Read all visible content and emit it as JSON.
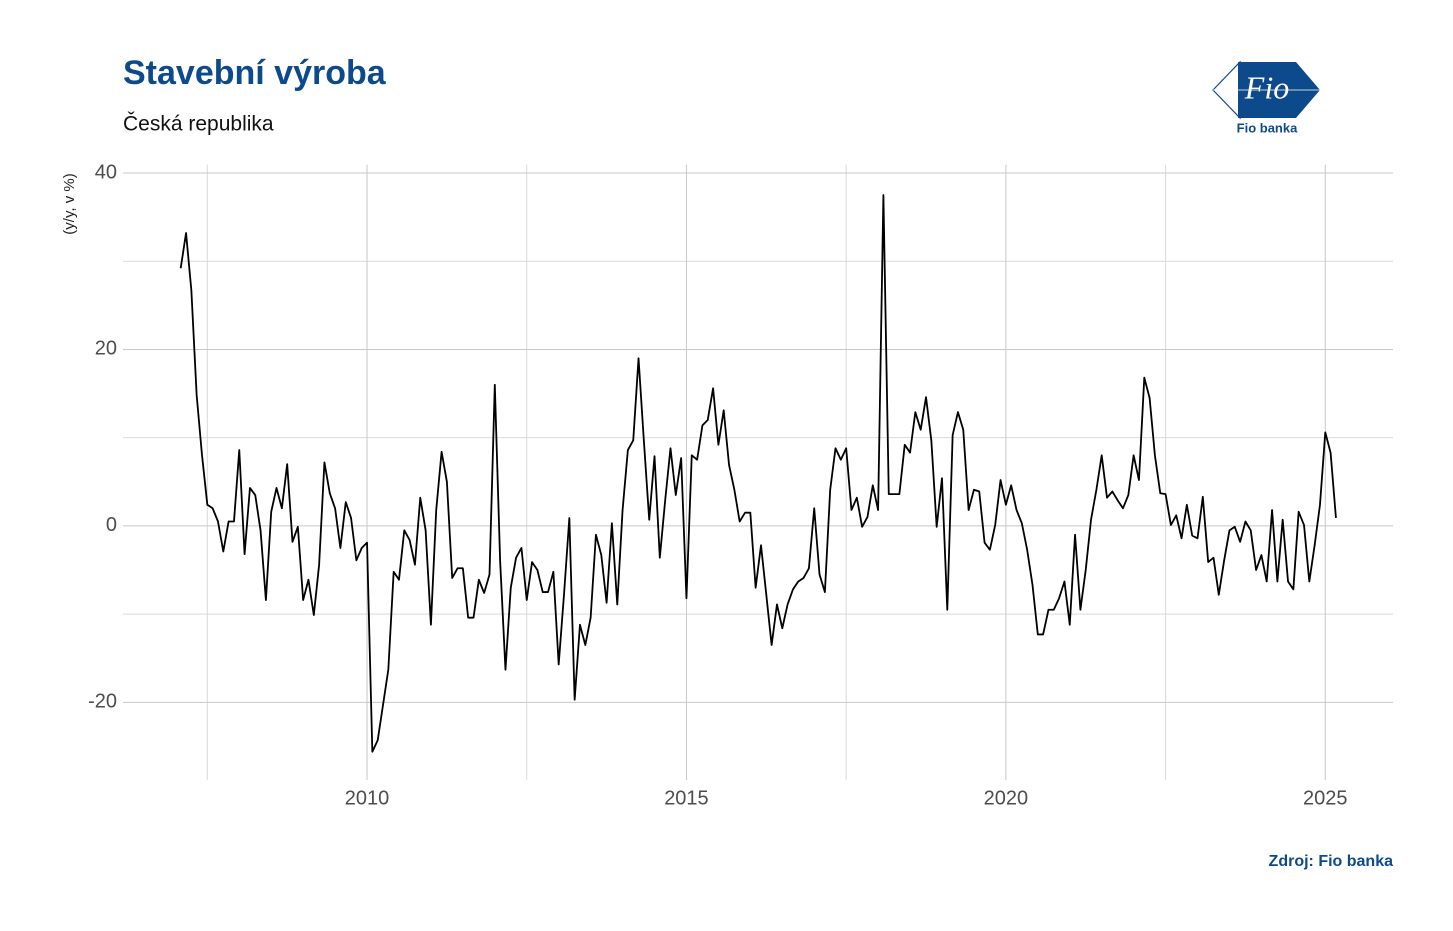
{
  "chart_data": {
    "type": "line",
    "title": "Stavební výroba",
    "subtitle": "Česká republika",
    "ylabel": "(y/y, v %)",
    "source": "Zdroj: Fio banka",
    "x": [
      2007.083,
      2007.167,
      2007.25,
      2007.333,
      2007.417,
      2007.5,
      2007.583,
      2007.667,
      2007.75,
      2007.833,
      2007.917,
      2008,
      2008.083,
      2008.167,
      2008.25,
      2008.333,
      2008.417,
      2008.5,
      2008.583,
      2008.667,
      2008.75,
      2008.833,
      2008.917,
      2009,
      2009.083,
      2009.167,
      2009.25,
      2009.333,
      2009.417,
      2009.5,
      2009.583,
      2009.667,
      2009.75,
      2009.833,
      2009.917,
      2010,
      2010.083,
      2010.167,
      2010.25,
      2010.333,
      2010.417,
      2010.5,
      2010.583,
      2010.667,
      2010.75,
      2010.833,
      2010.917,
      2011,
      2011.083,
      2011.167,
      2011.25,
      2011.333,
      2011.417,
      2011.5,
      2011.583,
      2011.667,
      2011.75,
      2011.833,
      2011.917,
      2012,
      2012.083,
      2012.167,
      2012.25,
      2012.333,
      2012.417,
      2012.5,
      2012.583,
      2012.667,
      2012.75,
      2012.833,
      2012.917,
      2013,
      2013.083,
      2013.167,
      2013.25,
      2013.333,
      2013.417,
      2013.5,
      2013.583,
      2013.667,
      2013.75,
      2013.833,
      2013.917,
      2014,
      2014.083,
      2014.167,
      2014.25,
      2014.333,
      2014.417,
      2014.5,
      2014.583,
      2014.667,
      2014.75,
      2014.833,
      2014.917,
      2015,
      2015.083,
      2015.167,
      2015.25,
      2015.333,
      2015.417,
      2015.5,
      2015.583,
      2015.667,
      2015.75,
      2015.833,
      2015.917,
      2016,
      2016.083,
      2016.167,
      2016.25,
      2016.333,
      2016.417,
      2016.5,
      2016.583,
      2016.667,
      2016.75,
      2016.833,
      2016.917,
      2017,
      2017.083,
      2017.167,
      2017.25,
      2017.333,
      2017.417,
      2017.5,
      2017.583,
      2017.667,
      2017.75,
      2017.833,
      2017.917,
      2018,
      2018.083,
      2018.167,
      2018.25,
      2018.333,
      2018.417,
      2018.5,
      2018.583,
      2018.667,
      2018.75,
      2018.833,
      2018.917,
      2019,
      2019.083,
      2019.167,
      2019.25,
      2019.333,
      2019.417,
      2019.5,
      2019.583,
      2019.667,
      2019.75,
      2019.833,
      2019.917,
      2020,
      2020.083,
      2020.167,
      2020.25,
      2020.333,
      2020.417,
      2020.5,
      2020.583,
      2020.667,
      2020.75,
      2020.833,
      2020.917,
      2021,
      2021.083,
      2021.167,
      2021.25,
      2021.333,
      2021.417,
      2021.5,
      2021.583,
      2021.667,
      2021.75,
      2021.833,
      2021.917,
      2022,
      2022.083,
      2022.167,
      2022.25,
      2022.333,
      2022.417,
      2022.5,
      2022.583,
      2022.667,
      2022.75,
      2022.833,
      2022.917,
      2023,
      2023.083,
      2023.167,
      2023.25,
      2023.333,
      2023.417,
      2023.5,
      2023.583,
      2023.667,
      2023.75,
      2023.833,
      2023.917,
      2024,
      2024.083,
      2024.167,
      2024.25,
      2024.333,
      2024.417,
      2024.5,
      2024.583,
      2024.667,
      2024.75,
      2024.833,
      2024.917,
      2025,
      2025.083,
      2025.167
    ],
    "values": [
      29.2,
      33.2,
      26.7,
      14.8,
      8.0,
      2.4,
      2.0,
      0.5,
      -2.9,
      0.5,
      0.5,
      8.6,
      -3.2,
      4.3,
      3.5,
      -0.5,
      -8.4,
      1.6,
      4.3,
      2.0,
      7.0,
      -1.8,
      -0.1,
      -8.4,
      -6.1,
      -10.1,
      -4.4,
      7.2,
      3.7,
      2.0,
      -2.5,
      2.7,
      0.9,
      -3.9,
      -2.5,
      -1.9,
      -25.6,
      -24.3,
      -20.3,
      -16.3,
      -5.2,
      -6.1,
      -0.5,
      -1.6,
      -4.4,
      3.2,
      -0.5,
      -11.2,
      1.8,
      8.4,
      5.0,
      -5.9,
      -4.8,
      -4.8,
      -10.4,
      -10.4,
      -6.1,
      -7.6,
      -5.5,
      16.0,
      -3.9,
      -16.3,
      -7.0,
      -3.6,
      -2.5,
      -8.4,
      -4.1,
      -5.0,
      -7.5,
      -7.5,
      -5.2,
      -15.7,
      -7.8,
      0.9,
      -19.7,
      -11.2,
      -13.5,
      -10.4,
      -1.0,
      -3.3,
      -8.7,
      0.3,
      -8.9,
      1.8,
      8.6,
      9.7,
      19.0,
      9.7,
      0.7,
      7.9,
      -3.6,
      2.9,
      8.8,
      3.5,
      7.7,
      -8.2,
      8.0,
      7.5,
      11.4,
      12.0,
      15.6,
      9.2,
      13.1,
      6.9,
      4.1,
      0.5,
      1.5,
      1.5,
      -7.0,
      -2.2,
      -7.8,
      -13.5,
      -8.9,
      -11.6,
      -8.9,
      -7.2,
      -6.3,
      -5.9,
      -4.8,
      2.0,
      -5.5,
      -7.5,
      4.1,
      8.8,
      7.5,
      8.8,
      1.8,
      3.2,
      -0.1,
      1.0,
      4.6,
      1.8,
      37.5,
      3.6,
      3.6,
      3.6,
      9.2,
      8.3,
      12.9,
      10.9,
      14.6,
      9.7,
      -0.1,
      5.4,
      -9.5,
      10.3,
      12.9,
      10.9,
      1.8,
      4.1,
      3.9,
      -1.9,
      -2.7,
      0.1,
      5.2,
      2.4,
      4.6,
      1.8,
      0.3,
      -2.7,
      -6.7,
      -12.3,
      -12.3,
      -9.5,
      -9.5,
      -8.2,
      -6.3,
      -11.2,
      -1.0,
      -9.5,
      -5.0,
      0.7,
      4.1,
      8.0,
      3.2,
      3.9,
      2.9,
      2.0,
      3.5,
      8.0,
      5.2,
      16.8,
      14.5,
      8.0,
      3.7,
      3.6,
      0.1,
      1.2,
      -1.4,
      2.4,
      -1.1,
      -1.4,
      3.3,
      -4.1,
      -3.6,
      -7.8,
      -3.9,
      -0.5,
      -0.1,
      -1.8,
      0.5,
      -0.5,
      -5.0,
      -3.3,
      -6.3,
      1.8,
      -6.3,
      0.7,
      -6.3,
      -7.2,
      1.6,
      0.1,
      -6.3,
      -2.2,
      2.4,
      10.6,
      8.3,
      0.9
    ],
    "color": "#000000",
    "xlim": [
      2006.18,
      2026.06
    ],
    "xticks": [
      2010,
      2015,
      2020,
      2025
    ],
    "xticks_minor": [
      2007.5,
      2012.5,
      2017.5,
      2022.5
    ],
    "ylim": [
      -28.8,
      40.5
    ],
    "yticks": [
      -20,
      0,
      20,
      40
    ],
    "yticks_minor": [
      -10,
      10,
      30
    ],
    "grid": true
  },
  "logo": {
    "mark": "Fio",
    "name": "Fio banka"
  }
}
